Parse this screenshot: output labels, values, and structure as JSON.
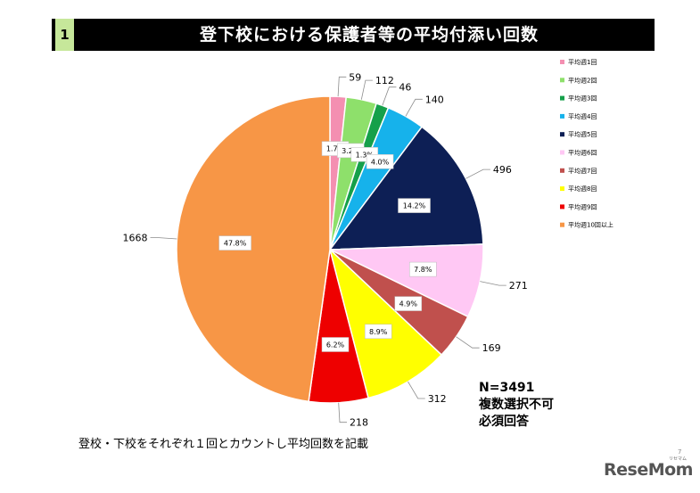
{
  "header": {
    "number": "1",
    "title": "登下校における保護者等の平均付添い回数"
  },
  "notes": {
    "n": "N=3491",
    "line1": "複数選択不可",
    "line2": "必須回答"
  },
  "footnote": "登校・下校をそれぞれ１回とカウントし平均回数を記載",
  "page_number": "7",
  "logo": {
    "text": "ReseMom",
    "sub": "リセマム"
  },
  "chart_data": {
    "type": "pie",
    "title": "登下校における保護者等の平均付添い回数",
    "legend_position": "right",
    "slices": [
      {
        "label": "平均週1回",
        "value": 59,
        "percent": "1.7%",
        "color": "#f48fb1"
      },
      {
        "label": "平均週2回",
        "value": 112,
        "percent": "3.2%",
        "color": "#8ee06b"
      },
      {
        "label": "平均週3回",
        "value": 46,
        "percent": "1.3%",
        "color": "#15a04a"
      },
      {
        "label": "平均週4回",
        "value": 140,
        "percent": "4.0%",
        "color": "#16b2eb"
      },
      {
        "label": "平均週5回",
        "value": 496,
        "percent": "14.2%",
        "color": "#0d1f55"
      },
      {
        "label": "平均週6回",
        "value": 271,
        "percent": "7.8%",
        "color": "#ffc8f4"
      },
      {
        "label": "平均週7回",
        "value": 169,
        "percent": "4.9%",
        "color": "#c0504d"
      },
      {
        "label": "平均週8回",
        "value": 312,
        "percent": "8.9%",
        "color": "#ffff00"
      },
      {
        "label": "平均週9回",
        "value": 218,
        "percent": "6.2%",
        "color": "#ee0000"
      },
      {
        "label": "平均週10回以上",
        "value": 1668,
        "percent": "47.8%",
        "color": "#f79646"
      }
    ]
  }
}
